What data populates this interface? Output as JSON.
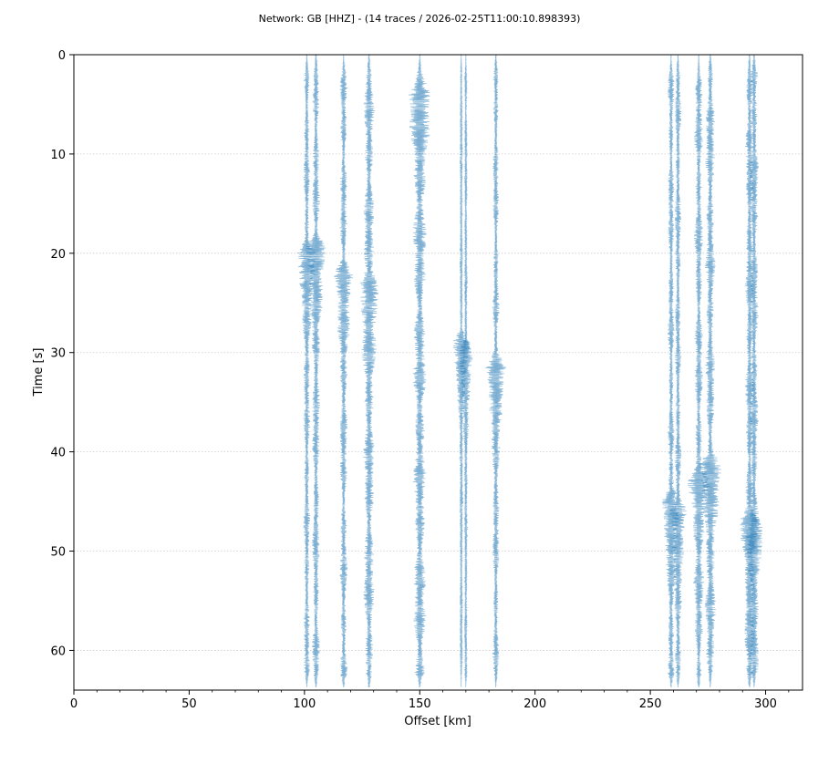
{
  "chart_data": {
    "type": "seismic-section",
    "title": "Network: GB [HHZ] - (14 traces / 2026-02-25T11:00:10.898393)",
    "xlabel": "Offset [km]",
    "ylabel": "Time [s]",
    "xlim": [
      0,
      316
    ],
    "ylim": [
      64,
      0
    ],
    "y_inverted": true,
    "xticks": [
      0,
      50,
      100,
      150,
      200,
      250,
      300
    ],
    "yticks": [
      0,
      10,
      20,
      30,
      40,
      50,
      60
    ],
    "grid": "horizontal-dotted",
    "trace_color": "#1f77b4",
    "traces": [
      {
        "offset": 101,
        "amplitude": 3.0,
        "events": [
          {
            "time": 20,
            "amplitude": 9
          }
        ]
      },
      {
        "offset": 105,
        "amplitude": 3.5,
        "events": [
          {
            "time": 19.5,
            "amplitude": 10
          }
        ]
      },
      {
        "offset": 117,
        "amplitude": 3.5,
        "events": [
          {
            "time": 22,
            "amplitude": 8
          }
        ]
      },
      {
        "offset": 128,
        "amplitude": 5.0,
        "events": [
          {
            "time": 23,
            "amplitude": 8
          }
        ]
      },
      {
        "offset": 150,
        "amplitude": 6.0,
        "events": [
          {
            "time": 4,
            "amplitude": 8
          }
        ]
      },
      {
        "offset": 168,
        "amplitude": 1.5,
        "events": [
          {
            "time": 29,
            "amplitude": 9
          }
        ]
      },
      {
        "offset": 170,
        "amplitude": 1.5,
        "events": [
          {
            "time": 30,
            "amplitude": 8
          }
        ]
      },
      {
        "offset": 183,
        "amplitude": 3.0,
        "events": [
          {
            "time": 31.5,
            "amplitude": 10
          }
        ]
      },
      {
        "offset": 259,
        "amplitude": 3.0,
        "events": [
          {
            "time": 45,
            "amplitude": 9
          }
        ]
      },
      {
        "offset": 262,
        "amplitude": 3.0,
        "events": [
          {
            "time": 46,
            "amplitude": 8
          }
        ]
      },
      {
        "offset": 271,
        "amplitude": 4.0,
        "events": [
          {
            "time": 43,
            "amplitude": 8
          }
        ]
      },
      {
        "offset": 276,
        "amplitude": 4.5,
        "events": [
          {
            "time": 41.5,
            "amplitude": 9
          }
        ]
      },
      {
        "offset": 293,
        "amplitude": 4.0,
        "events": [
          {
            "time": 47,
            "amplitude": 8
          }
        ]
      },
      {
        "offset": 295,
        "amplitude": 4.0,
        "events": [
          {
            "time": 48,
            "amplitude": 7
          }
        ]
      }
    ]
  }
}
